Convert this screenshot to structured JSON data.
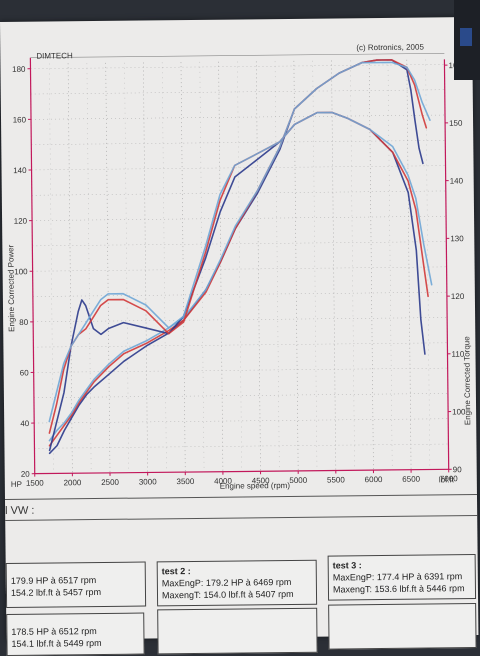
{
  "header": {
    "brand": "DIMTECH",
    "copyright": "(c) Rotronics, 2005"
  },
  "chart_data": {
    "type": "line",
    "xlabel": "Engine speed (rpm)",
    "ylabel_left": "Engine Corrected Power",
    "ylabel_right": "Engine Corrected Torque",
    "unit_left": "HP",
    "unit_right": "lbf.ft",
    "x_ticks": [
      1500,
      2000,
      2500,
      3000,
      3500,
      4000,
      4500,
      5000,
      5500,
      6000,
      6500,
      7000
    ],
    "y_left_ticks": [
      20,
      40,
      60,
      80,
      100,
      120,
      140,
      160,
      180
    ],
    "y_right_ticks": [
      90,
      100,
      110,
      120,
      130,
      140,
      150,
      160
    ],
    "xlim": [
      1500,
      7000
    ],
    "ylim_left": [
      20,
      182
    ],
    "ylim_right": [
      90,
      161
    ],
    "series": [
      {
        "axis": "left",
        "color": "#2b3a8c",
        "x": [
          1700,
          1800,
          1900,
          2000,
          2100,
          2200,
          2300,
          2500,
          2700,
          3000,
          3300,
          3500,
          3800,
          4000,
          4200,
          4500,
          4800,
          5000,
          5300,
          5600,
          5900,
          6100,
          6300,
          6500,
          6550,
          6600,
          6650,
          6700
        ],
        "y": [
          28,
          31,
          37,
          42,
          47,
          51,
          54,
          59,
          64,
          70,
          75,
          80,
          92,
          103,
          116,
          130,
          147,
          163,
          171,
          177,
          181,
          182,
          182,
          178,
          170,
          158,
          147,
          141
        ]
      },
      {
        "axis": "left",
        "color": "#d23a3a",
        "x": [
          1700,
          1800,
          1900,
          2000,
          2100,
          2200,
          2300,
          2500,
          2700,
          3000,
          3300,
          3500,
          3800,
          4000,
          4200,
          4500,
          4800,
          5000,
          5300,
          5600,
          5900,
          6100,
          6300,
          6500,
          6600,
          6700,
          6750
        ],
        "y": [
          31,
          35,
          39,
          43,
          48,
          52,
          56,
          62,
          67,
          71,
          76,
          80,
          91,
          103,
          116,
          131,
          148,
          163,
          171,
          177,
          181,
          182,
          182,
          179,
          172,
          160,
          155
        ]
      },
      {
        "axis": "left",
        "color": "#6fa6d6",
        "x": [
          1700,
          1800,
          1900,
          2000,
          2100,
          2200,
          2300,
          2500,
          2700,
          3000,
          3300,
          3500,
          3800,
          4000,
          4200,
          4500,
          4800,
          5000,
          5300,
          5600,
          5900,
          6100,
          6300,
          6500,
          6600,
          6700,
          6800
        ],
        "y": [
          33,
          37,
          40,
          44,
          49,
          53,
          57,
          63,
          68,
          72,
          77,
          81,
          92,
          104,
          117,
          131,
          148,
          163,
          171,
          177,
          181,
          181,
          181,
          179,
          174,
          165,
          158
        ]
      },
      {
        "axis": "right",
        "color": "#2b3a8c",
        "x": [
          1700,
          1800,
          1900,
          2000,
          2100,
          2150,
          2200,
          2300,
          2400,
          2500,
          2700,
          3000,
          3300,
          3500,
          3800,
          4000,
          4200,
          4500,
          4800,
          5000,
          5300,
          5500,
          5700,
          6000,
          6300,
          6500,
          6600,
          6650,
          6700
        ],
        "y": [
          94,
          99,
          104,
          112,
          118,
          120,
          119,
          115,
          114,
          115,
          116,
          115,
          114,
          117,
          127,
          135,
          141,
          144,
          147,
          150,
          152,
          152,
          151,
          149,
          145,
          138,
          128,
          116,
          110
        ]
      },
      {
        "axis": "right",
        "color": "#d23a3a",
        "x": [
          1700,
          1800,
          1900,
          2000,
          2100,
          2200,
          2300,
          2400,
          2500,
          2700,
          3000,
          3300,
          3500,
          3800,
          4000,
          4200,
          4500,
          4800,
          5000,
          5300,
          5500,
          5700,
          6000,
          6300,
          6500,
          6600,
          6700,
          6750
        ],
        "y": [
          97,
          102,
          108,
          112,
          114,
          115,
          117,
          119,
          120,
          120,
          118,
          114,
          116,
          128,
          137,
          143,
          145,
          147,
          150,
          152,
          152,
          151,
          149,
          145,
          140,
          135,
          125,
          120
        ]
      },
      {
        "axis": "right",
        "color": "#6fa6d6",
        "x": [
          1700,
          1800,
          1900,
          2000,
          2100,
          2200,
          2300,
          2400,
          2500,
          2700,
          3000,
          3300,
          3500,
          3800,
          4000,
          4200,
          4500,
          4800,
          5000,
          5300,
          5500,
          5700,
          6000,
          6300,
          6500,
          6600,
          6700,
          6800
        ],
        "y": [
          99,
          104,
          109,
          112,
          114,
          116,
          118,
          120,
          121,
          121,
          119,
          115,
          117,
          129,
          138,
          143,
          145,
          147,
          150,
          152,
          152,
          151,
          149,
          146,
          141,
          137,
          129,
          122
        ]
      }
    ]
  },
  "table": {
    "section_label": "l VW :",
    "boxes": [
      {
        "title": "",
        "lines": [
          "179.9 HP à 6517 rpm",
          "154.2 lbf.ft à 5457 rpm"
        ]
      },
      {
        "title": "test 2 :",
        "lines": [
          "MaxEngP: 179.2 HP à 6469 rpm",
          "MaxengT: 154.0 lbf.ft à 5407 rpm"
        ]
      },
      {
        "title": "test 3 :",
        "lines": [
          "MaxEngP: 177.4 HP à 6391 rpm",
          "MaxengT: 153.6 lbf.ft à 5446 rpm"
        ]
      },
      {
        "title": "",
        "lines": [
          "178.5 HP à 6512 rpm",
          "154.1 lbf.ft à 5449 rpm"
        ]
      },
      {
        "title": "",
        "lines": []
      },
      {
        "title": "",
        "lines": []
      }
    ]
  }
}
